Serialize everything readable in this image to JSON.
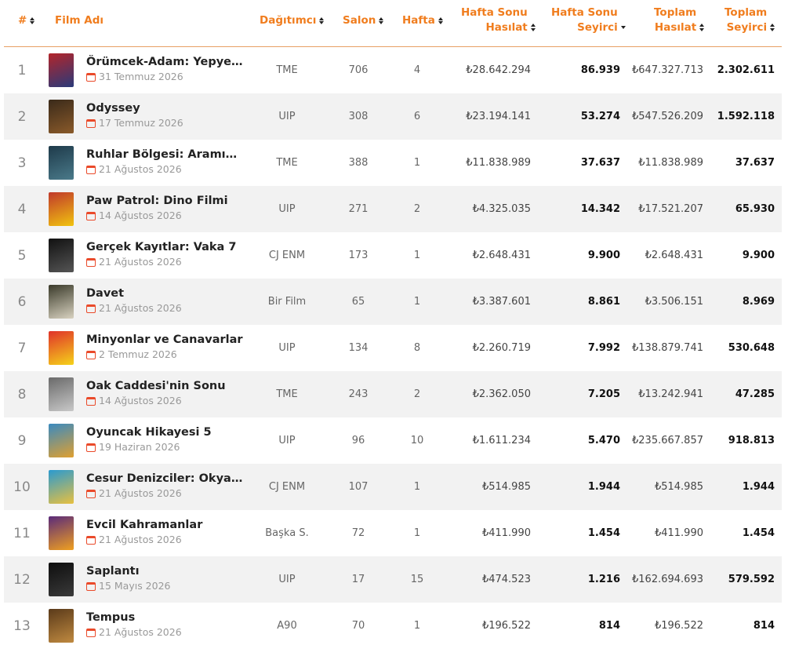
{
  "table": {
    "headers": {
      "rank": "#",
      "film": "Film Adı",
      "distributor": "Dağıtımcı",
      "salon": "Salon",
      "week": "Hafta",
      "weekend_revenue": [
        "Hafta Sonu",
        "Hasılat"
      ],
      "weekend_audience": [
        "Hafta Sonu",
        "Seyirci"
      ],
      "total_revenue": [
        "Toplam",
        "Hasılat"
      ],
      "total_audience": [
        "Toplam",
        "Seyirci"
      ]
    },
    "rows": [
      {
        "rank": "1",
        "title": "Örümcek-Adam: Yepyeni Bir Gün",
        "date": "31 Temmuz 2026",
        "distributor": "TME",
        "salon": "706",
        "week": "4",
        "weekend_revenue": "₺28.642.294",
        "weekend_audience": "86.939",
        "total_revenue": "₺647.327.713",
        "total_audience": "2.302.611",
        "poster_colors": [
          "#b3252a",
          "#2a3a7a"
        ]
      },
      {
        "rank": "2",
        "title": "Odyssey",
        "date": "17 Temmuz 2026",
        "distributor": "UIP",
        "salon": "308",
        "week": "6",
        "weekend_revenue": "₺23.194.141",
        "weekend_audience": "53.274",
        "total_revenue": "₺547.526.209",
        "total_audience": "1.592.118",
        "poster_colors": [
          "#3a2a1a",
          "#8a5a2a"
        ]
      },
      {
        "rank": "3",
        "title": "Ruhlar Bölgesi: Aramızdaki Tuhaflık",
        "date": "21 Ağustos 2026",
        "distributor": "TME",
        "salon": "388",
        "week": "1",
        "weekend_revenue": "₺11.838.989",
        "weekend_audience": "37.637",
        "total_revenue": "₺11.838.989",
        "total_audience": "37.637",
        "poster_colors": [
          "#1e3a4a",
          "#4a7a8a"
        ]
      },
      {
        "rank": "4",
        "title": "Paw Patrol: Dino Filmi",
        "date": "14 Ağustos 2026",
        "distributor": "UIP",
        "salon": "271",
        "week": "2",
        "weekend_revenue": "₺4.325.035",
        "weekend_audience": "14.342",
        "total_revenue": "₺17.521.207",
        "total_audience": "65.930",
        "poster_colors": [
          "#c0392b",
          "#f1c40f"
        ]
      },
      {
        "rank": "5",
        "title": "Gerçek Kayıtlar: Vaka 7",
        "date": "21 Ağustos 2026",
        "distributor": "CJ ENM",
        "salon": "173",
        "week": "1",
        "weekend_revenue": "₺2.648.431",
        "weekend_audience": "9.900",
        "total_revenue": "₺2.648.431",
        "total_audience": "9.900",
        "poster_colors": [
          "#111111",
          "#555555"
        ]
      },
      {
        "rank": "6",
        "title": "Davet",
        "date": "21 Ağustos 2026",
        "distributor": "Bir Film",
        "salon": "65",
        "week": "1",
        "weekend_revenue": "₺3.387.601",
        "weekend_audience": "8.861",
        "total_revenue": "₺3.506.151",
        "total_audience": "8.969",
        "poster_colors": [
          "#3a3a2a",
          "#d8d2c0"
        ]
      },
      {
        "rank": "7",
        "title": "Minyonlar ve Canavarlar",
        "date": "2 Temmuz 2026",
        "distributor": "UIP",
        "salon": "134",
        "week": "8",
        "weekend_revenue": "₺2.260.719",
        "weekend_audience": "7.992",
        "total_revenue": "₺138.879.741",
        "total_audience": "530.648",
        "poster_colors": [
          "#e0322a",
          "#f5d31a"
        ]
      },
      {
        "rank": "8",
        "title": "Oak Caddesi'nin Sonu",
        "date": "14 Ağustos 2026",
        "distributor": "TME",
        "salon": "243",
        "week": "2",
        "weekend_revenue": "₺2.362.050",
        "weekend_audience": "7.205",
        "total_revenue": "₺13.242.941",
        "total_audience": "47.285",
        "poster_colors": [
          "#6a6a6a",
          "#c8c8c8"
        ]
      },
      {
        "rank": "9",
        "title": "Oyuncak Hikayesi 5",
        "date": "19 Haziran 2026",
        "distributor": "UIP",
        "salon": "96",
        "week": "10",
        "weekend_revenue": "₺1.611.234",
        "weekend_audience": "5.470",
        "total_revenue": "₺235.667.857",
        "total_audience": "918.813",
        "poster_colors": [
          "#3a8ac0",
          "#e0a030"
        ]
      },
      {
        "rank": "10",
        "title": "Cesur Denizciler: Okyanus Macerası",
        "date": "21 Ağustos 2026",
        "distributor": "CJ ENM",
        "salon": "107",
        "week": "1",
        "weekend_revenue": "₺514.985",
        "weekend_audience": "1.944",
        "total_revenue": "₺514.985",
        "total_audience": "1.944",
        "poster_colors": [
          "#2a9ad0",
          "#e8c040"
        ]
      },
      {
        "rank": "11",
        "title": "Evcil Kahramanlar",
        "date": "21 Ağustos 2026",
        "distributor": "Başka S.",
        "salon": "72",
        "week": "1",
        "weekend_revenue": "₺411.990",
        "weekend_audience": "1.454",
        "total_revenue": "₺411.990",
        "total_audience": "1.454",
        "poster_colors": [
          "#5a2a7a",
          "#f0a020"
        ]
      },
      {
        "rank": "12",
        "title": "Saplantı",
        "date": "15 Mayıs 2026",
        "distributor": "UIP",
        "salon": "17",
        "week": "15",
        "weekend_revenue": "₺474.523",
        "weekend_audience": "1.216",
        "total_revenue": "₺162.694.693",
        "total_audience": "579.592",
        "poster_colors": [
          "#0e0e0e",
          "#3a3a3a"
        ]
      },
      {
        "rank": "13",
        "title": "Tempus",
        "date": "21 Ağustos 2026",
        "distributor": "A90",
        "salon": "70",
        "week": "1",
        "weekend_revenue": "₺196.522",
        "weekend_audience": "814",
        "total_revenue": "₺196.522",
        "total_audience": "814",
        "poster_colors": [
          "#5a3a1a",
          "#c08a40"
        ]
      }
    ]
  }
}
